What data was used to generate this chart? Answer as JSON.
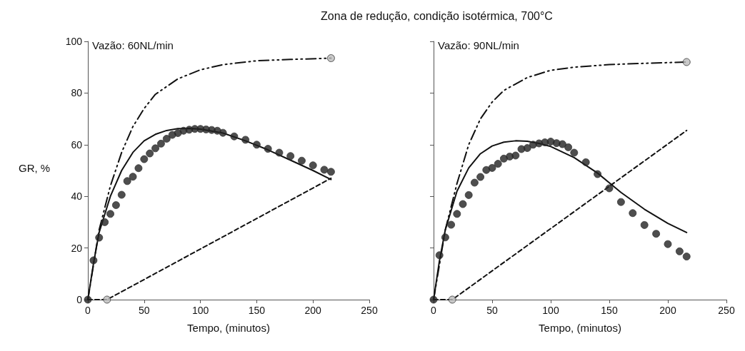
{
  "chart_data": [
    {
      "type": "scatter",
      "title": "Zona de redução, condição isotérmica, 700°C",
      "xlabel": "Tempo, (minutos)",
      "ylabel": "GR, %",
      "annotations": [
        "Vazão: 60NL/min"
      ],
      "xlim": [
        0,
        250
      ],
      "ylim": [
        0,
        100
      ],
      "xticks": [
        0,
        50,
        100,
        150,
        200,
        250
      ],
      "yticks": [
        0,
        20,
        40,
        60,
        80,
        100
      ],
      "grid": false,
      "series": [
        {
          "color": "#222222",
          "marker": "circle",
          "x": [
            0,
            5,
            10,
            15,
            20,
            25,
            30,
            35,
            40,
            45,
            50,
            55,
            60,
            65,
            70,
            75,
            80,
            85,
            90,
            95,
            100,
            105,
            110,
            115,
            120,
            130,
            140,
            150,
            160,
            170,
            180,
            190,
            200,
            210,
            216
          ],
          "values": [
            0,
            15.2,
            24,
            30,
            33.2,
            36.6,
            40.6,
            45.9,
            47.6,
            50.9,
            54.4,
            56.6,
            58.6,
            60.4,
            62.3,
            63.8,
            64.5,
            65.4,
            65.8,
            66.1,
            66.1,
            65.9,
            65.7,
            65.4,
            64.6,
            63.2,
            61.9,
            60,
            58.4,
            56.9,
            55.6,
            53.8,
            52,
            50.3,
            49.5
          ]
        },
        {
          "type": "line",
          "color": "#111111",
          "marker": "none",
          "line_style": "solid",
          "x": [
            0,
            5,
            10,
            20,
            30,
            40,
            50,
            60,
            70,
            80,
            90,
            100,
            120,
            140,
            160,
            180,
            200,
            216
          ],
          "values": [
            0,
            14,
            26,
            40,
            50,
            57,
            61.5,
            64,
            65.5,
            66.2,
            66.3,
            66,
            64.5,
            61.5,
            58,
            54,
            50,
            46.5
          ]
        },
        {
          "type": "line",
          "color": "#111111",
          "marker": "none",
          "line_style": "dashdot",
          "x": [
            0,
            10,
            20,
            30,
            40,
            50,
            60,
            80,
            100,
            120,
            150,
            180,
            216
          ],
          "values": [
            0,
            27,
            44,
            57,
            67,
            74,
            79.5,
            85.5,
            89,
            91,
            92.5,
            93,
            93.5
          ]
        },
        {
          "type": "line",
          "color": "#111111",
          "marker": "none",
          "line_style": "dashed",
          "x": [
            0,
            17,
            216
          ],
          "values": [
            0,
            0,
            47
          ]
        },
        {
          "color": "#bbbbbb",
          "marker": "circle",
          "x": [
            17,
            216
          ],
          "values": [
            0,
            93.5
          ]
        }
      ]
    },
    {
      "type": "scatter",
      "xlabel": "Tempo, (minutos)",
      "annotations": [
        "Vazão: 90NL/min"
      ],
      "xlim": [
        0,
        250
      ],
      "ylim": [
        0,
        100
      ],
      "xticks": [
        0,
        50,
        100,
        150,
        200,
        250
      ],
      "yticks": [
        0,
        20,
        40,
        60,
        80,
        100
      ],
      "tick_labels": "x",
      "grid": false,
      "series": [
        {
          "color": "#222222",
          "marker": "circle",
          "x": [
            0,
            5,
            10,
            15,
            20,
            25,
            30,
            35,
            40,
            45,
            50,
            55,
            60,
            65,
            70,
            75,
            80,
            85,
            90,
            95,
            100,
            105,
            110,
            115,
            120,
            130,
            140,
            150,
            160,
            170,
            180,
            190,
            200,
            210,
            216
          ],
          "values": [
            0,
            17.2,
            24.1,
            29,
            33.2,
            37,
            40.5,
            45.3,
            47.5,
            50.2,
            51,
            52.6,
            54.6,
            55.4,
            55.8,
            58.3,
            58.7,
            60,
            60.5,
            60.9,
            61.2,
            60.6,
            60.2,
            59,
            56.9,
            53.2,
            48.6,
            43.1,
            37.8,
            33.5,
            28.9,
            25.5,
            21.5,
            18.7,
            16.7
          ]
        },
        {
          "type": "line",
          "color": "#111111",
          "marker": "none",
          "line_style": "solid",
          "x": [
            0,
            5,
            10,
            20,
            30,
            40,
            50,
            60,
            70,
            80,
            90,
            100,
            120,
            140,
            160,
            180,
            200,
            216
          ],
          "values": [
            0,
            15,
            27,
            42,
            51,
            56.5,
            59.5,
            61,
            61.5,
            61.3,
            60.5,
            59.3,
            55,
            49,
            41.5,
            35,
            29.5,
            26
          ]
        },
        {
          "type": "line",
          "color": "#111111",
          "marker": "none",
          "line_style": "dashdot",
          "x": [
            0,
            10,
            20,
            30,
            40,
            50,
            60,
            80,
            100,
            120,
            150,
            180,
            216
          ],
          "values": [
            0,
            27,
            45,
            60,
            70,
            76.5,
            81,
            86,
            88.8,
            90,
            91,
            91.5,
            92
          ]
        },
        {
          "type": "line",
          "color": "#111111",
          "marker": "none",
          "line_style": "dashed",
          "x": [
            0,
            16,
            216
          ],
          "values": [
            0,
            0,
            65.5
          ]
        },
        {
          "color": "#bbbbbb",
          "marker": "circle",
          "x": [
            16,
            216
          ],
          "values": [
            0,
            92
          ]
        }
      ]
    }
  ]
}
